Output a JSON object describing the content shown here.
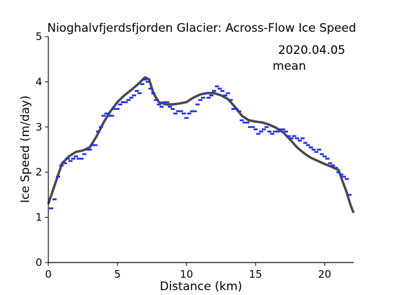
{
  "chart_data": {
    "type": "scatter",
    "title": "Nioghalvfjerdsfjorden Glacier: Across-Flow Ice Speed",
    "xlabel": "Distance (km)",
    "ylabel": "Ice Speed (m/day)",
    "xlim": [
      0,
      22.1
    ],
    "ylim": [
      0,
      5
    ],
    "xticks": [
      0,
      5,
      10,
      15,
      20
    ],
    "yticks": [
      0,
      1,
      2,
      3,
      4,
      5
    ],
    "grid": false,
    "legend_placement": "top-right",
    "series": [
      {
        "name": "2020.04.05",
        "color": "#1f2fff",
        "kind": "scatter",
        "x": [
          0.2,
          0.45,
          0.7,
          0.95,
          1.2,
          1.4,
          1.6,
          1.8,
          2.0,
          2.2,
          2.4,
          2.6,
          2.8,
          3.0,
          3.2,
          3.4,
          3.6,
          3.8,
          4.0,
          4.2,
          4.4,
          4.6,
          4.8,
          5.0,
          5.2,
          5.4,
          5.6,
          5.8,
          6.0,
          6.2,
          6.4,
          6.6,
          6.8,
          7.0,
          7.2,
          7.4,
          7.6,
          7.8,
          8.0,
          8.2,
          8.4,
          8.6,
          8.8,
          9.0,
          9.2,
          9.4,
          9.6,
          9.8,
          10.0,
          10.2,
          10.4,
          10.6,
          10.8,
          11.0,
          11.2,
          11.4,
          11.6,
          11.8,
          12.0,
          12.2,
          12.4,
          12.6,
          12.8,
          13.0,
          13.2,
          13.4,
          13.6,
          13.8,
          14.0,
          14.2,
          14.4,
          14.6,
          14.8,
          15.0,
          15.2,
          15.4,
          15.6,
          15.8,
          16.0,
          16.2,
          16.4,
          16.6,
          16.8,
          17.0,
          17.2,
          17.4,
          17.6,
          17.8,
          18.0,
          18.2,
          18.4,
          18.6,
          18.8,
          19.0,
          19.2,
          19.4,
          19.6,
          19.8,
          20.0,
          20.2,
          20.4,
          20.6,
          20.8,
          21.0,
          21.2,
          21.4,
          21.6,
          21.8
        ],
        "y": [
          1.2,
          1.4,
          1.9,
          2.15,
          2.2,
          2.3,
          2.25,
          2.3,
          2.35,
          2.3,
          2.3,
          2.4,
          2.5,
          2.5,
          2.6,
          2.6,
          2.9,
          3.0,
          3.25,
          3.3,
          3.25,
          3.25,
          3.4,
          3.4,
          3.5,
          3.55,
          3.55,
          3.6,
          3.65,
          3.7,
          3.8,
          3.75,
          3.95,
          4.05,
          4.0,
          3.85,
          3.75,
          3.6,
          3.5,
          3.45,
          3.55,
          3.55,
          3.45,
          3.4,
          3.3,
          3.35,
          3.35,
          3.3,
          3.2,
          3.3,
          3.35,
          3.35,
          3.5,
          3.6,
          3.65,
          3.75,
          3.65,
          3.7,
          3.8,
          3.9,
          3.85,
          3.8,
          3.7,
          3.75,
          3.6,
          3.4,
          3.4,
          3.35,
          3.15,
          3.1,
          3.1,
          3.0,
          3.0,
          2.95,
          2.85,
          2.9,
          2.95,
          3.0,
          2.9,
          2.85,
          2.9,
          2.9,
          2.95,
          2.95,
          2.9,
          2.8,
          2.75,
          2.8,
          2.75,
          2.7,
          2.75,
          2.65,
          2.6,
          2.55,
          2.5,
          2.45,
          2.5,
          2.4,
          2.35,
          2.3,
          2.2,
          2.15,
          2.1,
          2.0,
          1.95,
          1.9,
          1.85,
          1.5
        ]
      },
      {
        "name": "mean",
        "color": "#4a4a4a",
        "kind": "line",
        "x": [
          0.0,
          0.5,
          1.0,
          1.5,
          2.0,
          2.5,
          3.0,
          3.5,
          4.0,
          4.5,
          5.0,
          5.5,
          6.0,
          6.5,
          7.0,
          7.3,
          7.6,
          8.0,
          8.5,
          9.0,
          9.5,
          10.0,
          10.5,
          11.0,
          11.5,
          12.0,
          12.5,
          13.0,
          13.5,
          14.0,
          14.5,
          15.0,
          15.5,
          16.0,
          16.5,
          17.0,
          17.5,
          18.0,
          18.5,
          19.0,
          19.5,
          20.0,
          20.5,
          21.0,
          21.3,
          21.6,
          21.9,
          22.1
        ],
        "y": [
          1.3,
          1.75,
          2.2,
          2.35,
          2.45,
          2.48,
          2.55,
          2.8,
          3.1,
          3.35,
          3.55,
          3.7,
          3.82,
          3.95,
          4.1,
          4.05,
          3.75,
          3.55,
          3.5,
          3.5,
          3.52,
          3.55,
          3.65,
          3.72,
          3.75,
          3.75,
          3.7,
          3.62,
          3.45,
          3.25,
          3.15,
          3.12,
          3.1,
          3.05,
          2.98,
          2.88,
          2.72,
          2.55,
          2.42,
          2.32,
          2.25,
          2.18,
          2.12,
          2.05,
          1.8,
          1.55,
          1.25,
          1.1
        ]
      }
    ],
    "xtick_labels": [
      "0",
      "5",
      "10",
      "15",
      "20"
    ],
    "ytick_labels": [
      "0",
      "1",
      "2",
      "3",
      "4",
      "5"
    ]
  }
}
